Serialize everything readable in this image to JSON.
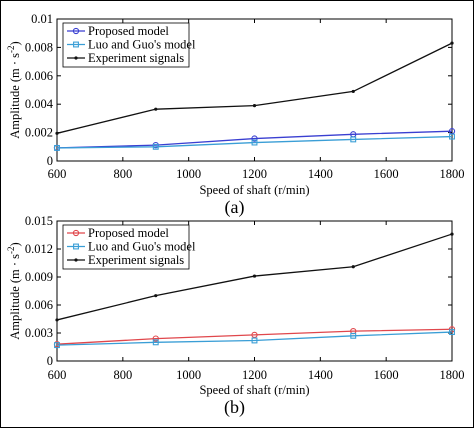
{
  "figure": {
    "panels": [
      "(a)",
      "(b)"
    ]
  },
  "chart_data": [
    {
      "type": "line",
      "caption": "(a)",
      "xlabel": "Speed of shaft (r/min)",
      "ylabel": "Amplitude (m · s",
      "ylabel_sup": "-2",
      "ylabel_end": ")",
      "xlim": [
        600,
        1800
      ],
      "ylim": [
        0,
        0.01
      ],
      "xticks": [
        "600",
        "800",
        "1000",
        "1200",
        "1400",
        "1600",
        "1800"
      ],
      "yticks": [
        "0",
        "0.002",
        "0.004",
        "0.006",
        "0.008",
        "0.01"
      ],
      "grid": false,
      "legend_position": "top-left",
      "x": [
        600,
        900,
        1200,
        1500,
        1800
      ],
      "series": [
        {
          "name": "Proposed model",
          "color": "#3a3fd1",
          "marker": "circle",
          "values": [
            0.00092,
            0.00112,
            0.00158,
            0.00188,
            0.0021
          ]
        },
        {
          "name": "Luo and Guo's model",
          "color": "#3a9ed6",
          "marker": "square",
          "values": [
            0.00092,
            0.001,
            0.0013,
            0.00152,
            0.00172
          ]
        },
        {
          "name": "Experiment signals",
          "color": "#111111",
          "marker": "dot",
          "values": [
            0.00195,
            0.00365,
            0.0039,
            0.0049,
            0.0083
          ]
        }
      ]
    },
    {
      "type": "line",
      "caption": "(b)",
      "xlabel": "Speed of shaft (r/min)",
      "ylabel": "Amplitude (m · s",
      "ylabel_sup": "-2",
      "ylabel_end": ")",
      "xlim": [
        600,
        1800
      ],
      "ylim": [
        0,
        0.015
      ],
      "xticks": [
        "600",
        "800",
        "1000",
        "1200",
        "1400",
        "1600",
        "1800"
      ],
      "yticks": [
        "0",
        "0.003",
        "0.006",
        "0.009",
        "0.012",
        "0.015"
      ],
      "grid": false,
      "legend_position": "top-left",
      "x": [
        600,
        900,
        1200,
        1500,
        1800
      ],
      "series": [
        {
          "name": "Proposed model",
          "color": "#e0474c",
          "marker": "circle",
          "values": [
            0.0018,
            0.0024,
            0.0028,
            0.0032,
            0.0034
          ]
        },
        {
          "name": "Luo and Guo's model",
          "color": "#3a9ed6",
          "marker": "square",
          "values": [
            0.0017,
            0.002,
            0.0022,
            0.0027,
            0.0031
          ]
        },
        {
          "name": "Experiment signals",
          "color": "#111111",
          "marker": "dot",
          "values": [
            0.0044,
            0.007,
            0.0091,
            0.0101,
            0.0136
          ]
        }
      ]
    }
  ]
}
